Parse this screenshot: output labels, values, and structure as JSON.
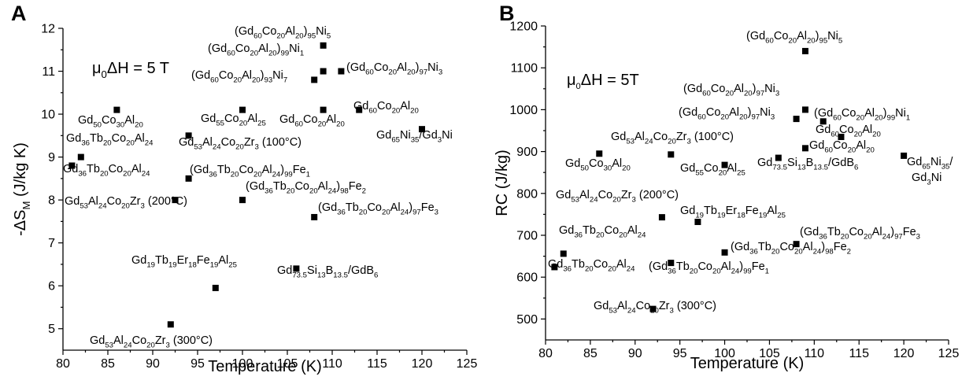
{
  "chart_data": [
    {
      "type": "scatter",
      "panel": "A",
      "condition": "μ0ΔH = 5 T",
      "xlabel": "Temperature (K)",
      "ylabel": "-ΔS_M (J/kg K)",
      "xlim": [
        80,
        125
      ],
      "ylim": [
        4.5,
        12
      ],
      "xticks": [
        80,
        85,
        90,
        95,
        100,
        105,
        110,
        115,
        120,
        125
      ],
      "yticks": [
        5,
        6,
        7,
        8,
        9,
        10,
        11,
        12
      ],
      "points": [
        {
          "x": 109,
          "y": 11.6,
          "label": "(Gd_{60}Co_{20}Al_{20})_{95}Ni_{5}"
        },
        {
          "x": 111,
          "y": 11.0,
          "label": "(Gd_{60}Co_{20}Al_{20})_{99}Ni_{1}"
        },
        {
          "x": 108,
          "y": 10.8,
          "label": "(Gd_{60}Co_{20}Al_{20})_{93}Ni_{7}"
        },
        {
          "x": 109,
          "y": 11.0,
          "label": "(Gd_{60}Co_{20}Al_{20})_{97}Ni_{3}"
        },
        {
          "x": 86,
          "y": 10.1,
          "label": "Gd_{50}Co_{30}Al_{20}"
        },
        {
          "x": 100,
          "y": 10.1,
          "label": "Gd_{55}Co_{20}Al_{25}"
        },
        {
          "x": 109,
          "y": 10.1,
          "label": "Gd_{60}Co_{20}Al_{20}"
        },
        {
          "x": 113,
          "y": 10.1,
          "label": "Gd_{60}Co_{20}Al_{20}"
        },
        {
          "x": 120,
          "y": 9.65,
          "label": "Gd_{65}Ni_{35}/Gd_{3}Ni"
        },
        {
          "x": 94,
          "y": 9.5,
          "label": "Gd_{53}Al_{24}Co_{20}Zr_{3} (100°C)"
        },
        {
          "x": 82,
          "y": 9.0,
          "label": "Gd_{36}Tb_{20}Co_{20}Al_{24}"
        },
        {
          "x": 81,
          "y": 8.8,
          "label": "Gd_{36}Tb_{20}Co_{20}Al_{24}"
        },
        {
          "x": 94,
          "y": 8.5,
          "label": "(Gd_{36}Tb_{20}Co_{20}Al_{24})_{99}Fe_{1}"
        },
        {
          "x": 92.5,
          "y": 8.0,
          "label": "Gd_{53}Al_{24}Co_{20}Zr_{3} (200°C)"
        },
        {
          "x": 100,
          "y": 8.0,
          "label": "(Gd_{36}Tb_{20}Co_{20}Al_{24})_{98}Fe_{2}"
        },
        {
          "x": 108,
          "y": 7.6,
          "label": "(Gd_{36}Tb_{20}Co_{20}Al_{24})_{97}Fe_{3}"
        },
        {
          "x": 106,
          "y": 6.4,
          "label": "Gd_{73.5}Si_{13}B_{13.5}/GdB_{6}"
        },
        {
          "x": 97,
          "y": 5.95,
          "label": "Gd_{19}Tb_{19}Er_{18}Fe_{19}Al_{25}"
        },
        {
          "x": 92,
          "y": 5.1,
          "label": "Gd_{53}Al_{24}Co_{20}Zr_{3} (300°C)"
        }
      ]
    },
    {
      "type": "scatter",
      "panel": "B",
      "condition": "μ0ΔH = 5T",
      "xlabel": "Temperature (K)",
      "ylabel": "RC (J/kg)",
      "xlim": [
        80,
        125
      ],
      "ylim": [
        450,
        1200
      ],
      "xticks": [
        80,
        85,
        90,
        95,
        100,
        105,
        110,
        115,
        120,
        125
      ],
      "yticks": [
        500,
        600,
        700,
        800,
        900,
        1000,
        1100,
        1200
      ],
      "points": [
        {
          "x": 109,
          "y": 1140,
          "label": "(Gd_{60}Co_{20}Al_{20})_{95}Ni_{5}"
        },
        {
          "x": 109,
          "y": 1000,
          "label": "(Gd_{60}Co_{20}Al_{20})_{97}Ni_{3}"
        },
        {
          "x": 108,
          "y": 978,
          "label": "(Gd_{60}Co_{20}Al_{20})_{97}Ni_{3}"
        },
        {
          "x": 111,
          "y": 972,
          "label": "(Gd_{60}Co_{20}Al_{20})_{99}Ni_{1}"
        },
        {
          "x": 113,
          "y": 935,
          "label": "Gd_{60}Co_{20}Al_{20}"
        },
        {
          "x": 109,
          "y": 908,
          "label": "Gd_{60}Co_{20}Al_{20}"
        },
        {
          "x": 86,
          "y": 895,
          "label": "Gd_{50}Co_{30}Al_{20}"
        },
        {
          "x": 94,
          "y": 893,
          "label": "Gd_{53}Al_{24}Co_{20}Zr_{3} (100°C)"
        },
        {
          "x": 120,
          "y": 890,
          "label": "Gd_{65}Ni_{35}/Gd_{3}Ni"
        },
        {
          "x": 106,
          "y": 885,
          "label": "Gd_{73.5}Si_{13}B_{13.5}/GdB_{6}"
        },
        {
          "x": 100,
          "y": 868,
          "label": "Gd_{55}Co_{20}Al_{25}"
        },
        {
          "x": 93,
          "y": 743,
          "label": "Gd_{53}Al_{24}Co_{20}Zr_{3} (200°C)"
        },
        {
          "x": 97,
          "y": 732,
          "label": "Gd_{19}Tb_{19}Er_{18}Fe_{19}Al_{25}"
        },
        {
          "x": 108,
          "y": 679,
          "label": "(Gd_{36}Tb_{20}Co_{20}Al_{24})_{97}Fe_{3}"
        },
        {
          "x": 100,
          "y": 659,
          "label": "(Gd_{36}Tb_{20}Co_{20}Al_{24})_{98}Fe_{2}"
        },
        {
          "x": 82,
          "y": 656,
          "label": "Gd_{36}Tb_{20}Co_{20}Al_{24}"
        },
        {
          "x": 94,
          "y": 634,
          "label": "(Gd_{36}Tb_{20}Co_{20}Al_{24})_{99}Fe_{1}"
        },
        {
          "x": 81,
          "y": 624,
          "label": "Gd_{36}Tb_{20}Co_{20}Al_{24}"
        },
        {
          "x": 92,
          "y": 524,
          "label": "Gd_{53}Al_{24}Co_{20}Zr_{3} (300°C)"
        }
      ]
    }
  ]
}
